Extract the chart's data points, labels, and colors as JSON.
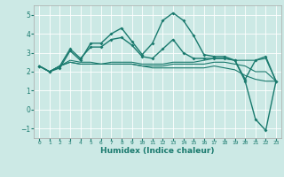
{
  "xlabel": "Humidex (Indice chaleur)",
  "ylabel": "",
  "xlim": [
    -0.5,
    23.5
  ],
  "ylim": [
    -1.5,
    5.5
  ],
  "yticks": [
    -1,
    0,
    1,
    2,
    3,
    4,
    5
  ],
  "xticks": [
    0,
    1,
    2,
    3,
    4,
    5,
    6,
    7,
    8,
    9,
    10,
    11,
    12,
    13,
    14,
    15,
    16,
    17,
    18,
    19,
    20,
    21,
    22,
    23
  ],
  "background_color": "#cce9e5",
  "grid_color": "#ffffff",
  "line_color": "#1a7a6e",
  "series": [
    [
      2.3,
      2.0,
      2.2,
      3.1,
      2.6,
      3.5,
      3.5,
      4.0,
      4.3,
      3.6,
      2.9,
      3.5,
      4.7,
      5.1,
      4.7,
      3.9,
      2.9,
      2.8,
      2.8,
      2.6,
      1.5,
      -0.5,
      -1.1,
      1.5
    ],
    [
      2.3,
      2.0,
      2.3,
      3.2,
      2.7,
      3.3,
      3.3,
      3.7,
      3.8,
      3.4,
      2.8,
      2.7,
      3.2,
      3.7,
      3.0,
      2.7,
      2.7,
      2.7,
      2.7,
      2.6,
      1.6,
      2.6,
      2.8,
      1.5
    ],
    [
      2.3,
      2.0,
      2.3,
      2.6,
      2.5,
      2.5,
      2.4,
      2.5,
      2.5,
      2.5,
      2.4,
      2.4,
      2.4,
      2.5,
      2.5,
      2.5,
      2.6,
      2.7,
      2.7,
      2.6,
      2.6,
      2.6,
      2.7,
      1.5
    ],
    [
      2.3,
      2.0,
      2.3,
      2.5,
      2.4,
      2.4,
      2.4,
      2.4,
      2.4,
      2.4,
      2.3,
      2.3,
      2.3,
      2.4,
      2.4,
      2.4,
      2.4,
      2.5,
      2.5,
      2.4,
      2.3,
      2.0,
      2.0,
      1.5
    ],
    [
      2.3,
      2.0,
      2.3,
      2.5,
      2.4,
      2.4,
      2.4,
      2.4,
      2.4,
      2.4,
      2.3,
      2.2,
      2.2,
      2.2,
      2.2,
      2.2,
      2.2,
      2.3,
      2.2,
      2.1,
      1.8,
      1.6,
      1.5,
      1.5
    ]
  ],
  "markers": [
    true,
    true,
    false,
    false,
    false
  ],
  "linewidths": [
    1.0,
    1.0,
    0.8,
    0.8,
    0.8
  ]
}
